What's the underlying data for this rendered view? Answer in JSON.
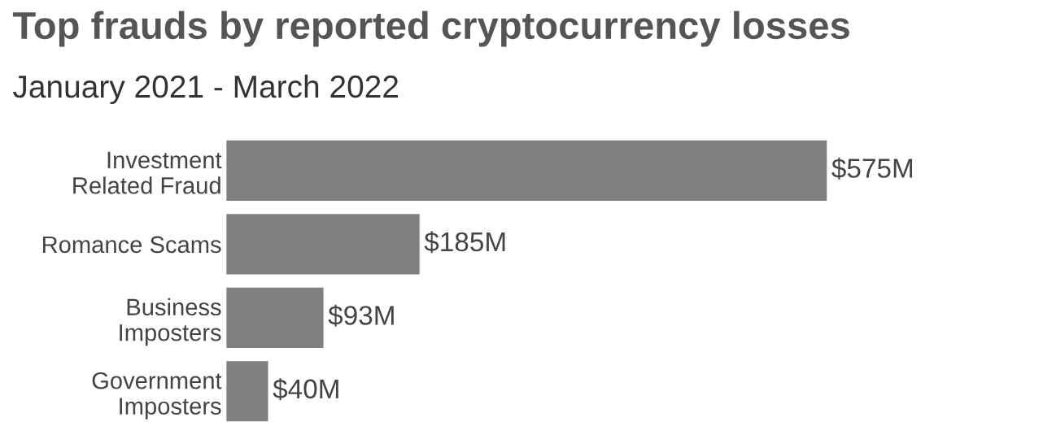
{
  "chart_data": {
    "type": "bar",
    "orientation": "horizontal",
    "title": "Top frauds by reported cryptocurrency losses",
    "subtitle": "January 2021 - March 2022",
    "categories": [
      "Investment\nRelated Fraud",
      "Romance Scams",
      "Business\nImposters",
      "Government\nImposters"
    ],
    "values": [
      575,
      185,
      93,
      40
    ],
    "value_labels": [
      "$575M",
      "$185M",
      "$93M",
      "$40M"
    ],
    "color": "#808080",
    "grid": false,
    "legend": false
  }
}
